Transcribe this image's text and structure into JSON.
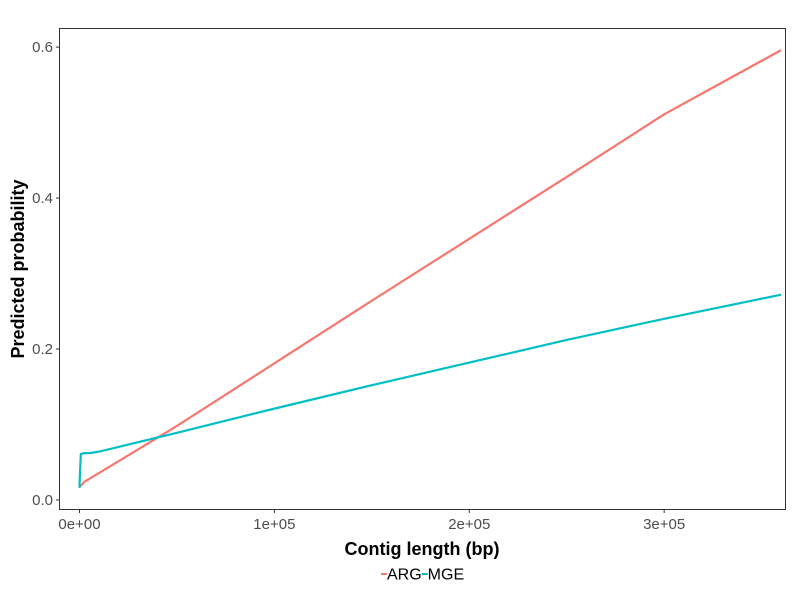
{
  "chart_data": {
    "type": "line",
    "xlabel": "Contig length (bp)",
    "ylabel": "Predicted probability",
    "xlim": [
      -10000,
      362000
    ],
    "ylim": [
      -0.012,
      0.624
    ],
    "x_ticks": [
      {
        "value": 0,
        "label": "0e+00"
      },
      {
        "value": 100000,
        "label": "1e+05"
      },
      {
        "value": 200000,
        "label": "2e+05"
      },
      {
        "value": 300000,
        "label": "3e+05"
      }
    ],
    "y_ticks": [
      {
        "value": 0.0,
        "label": "0.0"
      },
      {
        "value": 0.2,
        "label": "0.2"
      },
      {
        "value": 0.4,
        "label": "0.4"
      },
      {
        "value": 0.6,
        "label": "0.6"
      }
    ],
    "grid": false,
    "legend_position": "bottom",
    "series": [
      {
        "name": "ARG",
        "color": "#F8766D",
        "x": [
          0,
          2500,
          50000,
          100000,
          150000,
          200000,
          250000,
          300000,
          360000
        ],
        "y": [
          0.017,
          0.024,
          0.098,
          0.181,
          0.264,
          0.346,
          0.428,
          0.511,
          0.596
        ]
      },
      {
        "name": "MGE",
        "color": "#00BFC4",
        "x": [
          0,
          150,
          700,
          2500,
          5000,
          10000,
          50000,
          100000,
          150000,
          200000,
          250000,
          300000,
          360000
        ],
        "y": [
          0.016,
          0.03,
          0.061,
          0.062,
          0.062,
          0.064,
          0.089,
          0.121,
          0.152,
          0.182,
          0.212,
          0.24,
          0.272
        ]
      }
    ]
  }
}
